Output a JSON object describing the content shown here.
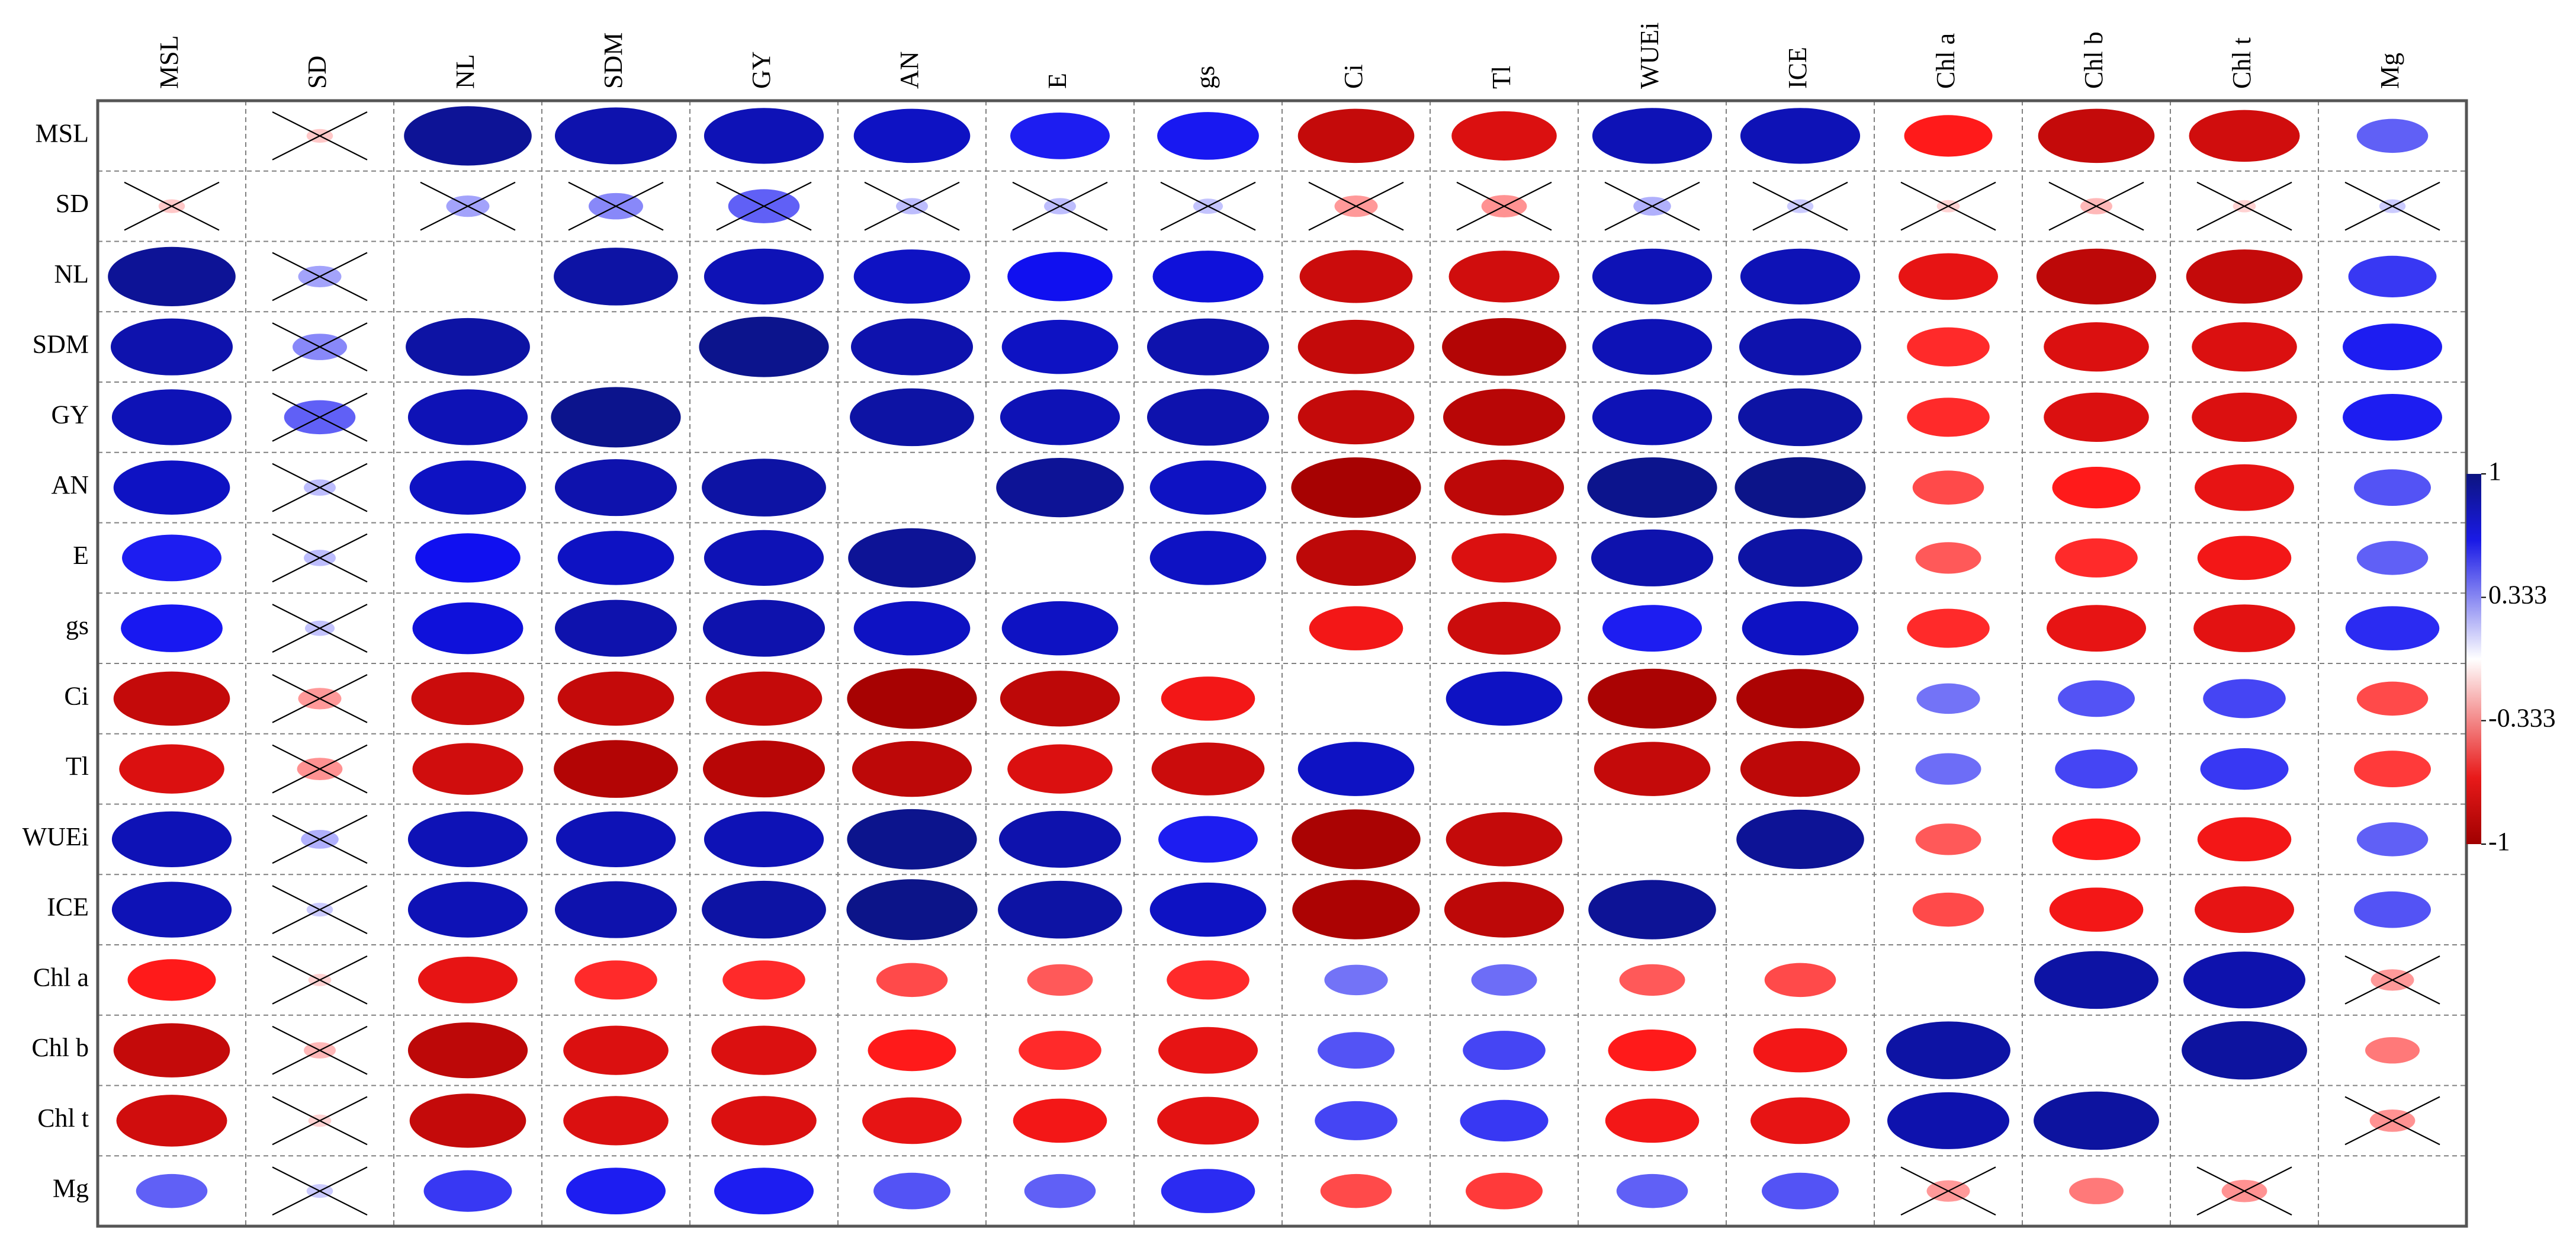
{
  "chart_data": {
    "type": "heatmap",
    "subtype": "ellipse-correlation-matrix",
    "variables": [
      "MSL",
      "SD",
      "NL",
      "SDM",
      "GY",
      "AN",
      "E",
      "gs",
      "Ci",
      "Tl",
      "WUEi",
      "ICE",
      "Chl a",
      "Chl b",
      "Chl t",
      "Mg"
    ],
    "matrix": [
      [
        null,
        -0.05,
        0.95,
        0.9,
        0.88,
        0.85,
        0.7,
        0.72,
        -0.85,
        -0.75,
        0.88,
        0.88,
        -0.6,
        -0.85,
        -0.8,
        0.45
      ],
      [
        -0.05,
        null,
        0.2,
        0.3,
        0.45,
        0.1,
        0.1,
        0.08,
        -0.2,
        -0.22,
        0.15,
        0.05,
        -0.02,
        -0.1,
        -0.02,
        0.05
      ],
      [
        0.95,
        0.2,
        null,
        0.92,
        0.88,
        0.85,
        0.75,
        0.8,
        -0.82,
        -0.8,
        0.88,
        0.88,
        -0.7,
        -0.88,
        -0.85,
        0.6
      ],
      [
        0.9,
        0.3,
        0.92,
        null,
        0.97,
        0.9,
        0.85,
        0.9,
        -0.85,
        -0.92,
        0.88,
        0.9,
        -0.55,
        -0.75,
        -0.75,
        0.7
      ],
      [
        0.88,
        0.45,
        0.88,
        0.97,
        null,
        0.92,
        0.88,
        0.9,
        -0.85,
        -0.9,
        0.88,
        0.92,
        -0.55,
        -0.75,
        -0.75,
        0.7
      ],
      [
        0.85,
        0.1,
        0.85,
        0.9,
        0.92,
        null,
        0.95,
        0.85,
        -0.97,
        -0.88,
        0.97,
        0.98,
        -0.45,
        -0.6,
        -0.7,
        0.5
      ],
      [
        0.7,
        0.1,
        0.75,
        0.85,
        0.88,
        0.95,
        null,
        0.85,
        -0.88,
        -0.75,
        0.9,
        0.92,
        -0.4,
        -0.55,
        -0.65,
        0.45
      ],
      [
        0.72,
        0.08,
        0.8,
        0.9,
        0.9,
        0.85,
        0.85,
        null,
        -0.65,
        -0.82,
        0.7,
        0.85,
        -0.55,
        -0.7,
        -0.72,
        0.65
      ],
      [
        -0.85,
        -0.2,
        -0.82,
        -0.85,
        -0.85,
        -0.97,
        -0.88,
        -0.65,
        null,
        0.85,
        -0.96,
        -0.95,
        0.38,
        0.5,
        0.55,
        -0.45
      ],
      [
        -0.75,
        -0.22,
        -0.8,
        -0.92,
        -0.9,
        -0.88,
        -0.75,
        -0.82,
        0.85,
        null,
        -0.85,
        -0.88,
        0.4,
        0.55,
        0.6,
        -0.5
      ],
      [
        0.88,
        0.15,
        0.88,
        0.88,
        0.88,
        0.97,
        0.9,
        0.7,
        -0.96,
        -0.85,
        null,
        0.95,
        -0.4,
        -0.6,
        -0.65,
        0.45
      ],
      [
        0.88,
        0.05,
        0.88,
        0.9,
        0.92,
        0.98,
        0.92,
        0.85,
        -0.95,
        -0.88,
        0.95,
        null,
        -0.45,
        -0.65,
        -0.7,
        0.5
      ],
      [
        -0.6,
        -0.02,
        -0.7,
        -0.55,
        -0.55,
        -0.45,
        -0.4,
        -0.55,
        0.38,
        0.4,
        -0.4,
        -0.45,
        null,
        0.92,
        0.9,
        -0.2
      ],
      [
        -0.85,
        -0.1,
        -0.88,
        -0.75,
        -0.75,
        -0.6,
        -0.55,
        -0.7,
        0.5,
        0.55,
        -0.6,
        -0.65,
        0.92,
        null,
        0.93,
        -0.3
      ],
      [
        -0.8,
        -0.02,
        -0.85,
        -0.75,
        -0.75,
        -0.7,
        -0.65,
        -0.72,
        0.55,
        0.6,
        -0.65,
        -0.7,
        0.9,
        0.93,
        null,
        -0.22
      ],
      [
        0.45,
        0.05,
        0.6,
        0.7,
        0.7,
        0.5,
        0.45,
        0.65,
        -0.45,
        -0.5,
        0.45,
        0.5,
        -0.2,
        -0.3,
        -0.22,
        null
      ]
    ],
    "crossed_cells": [
      [
        0,
        1
      ],
      [
        1,
        0
      ],
      [
        1,
        2
      ],
      [
        1,
        3
      ],
      [
        1,
        4
      ],
      [
        1,
        5
      ],
      [
        1,
        6
      ],
      [
        1,
        7
      ],
      [
        1,
        8
      ],
      [
        1,
        9
      ],
      [
        1,
        10
      ],
      [
        1,
        11
      ],
      [
        1,
        12
      ],
      [
        1,
        13
      ],
      [
        1,
        14
      ],
      [
        1,
        15
      ],
      [
        2,
        1
      ],
      [
        3,
        1
      ],
      [
        4,
        1
      ],
      [
        5,
        1
      ],
      [
        6,
        1
      ],
      [
        7,
        1
      ],
      [
        8,
        1
      ],
      [
        9,
        1
      ],
      [
        10,
        1
      ],
      [
        11,
        1
      ],
      [
        12,
        1
      ],
      [
        13,
        1
      ],
      [
        14,
        1
      ],
      [
        15,
        1
      ],
      [
        12,
        15
      ],
      [
        14,
        15
      ],
      [
        15,
        12
      ],
      [
        15,
        14
      ]
    ],
    "colorbar": {
      "min": -1,
      "max": 1,
      "tick_labels": [
        "1",
        "0.333",
        "-0.333",
        "-1"
      ],
      "tick_values": [
        1,
        0.333,
        -0.333,
        -1
      ]
    },
    "colors": {
      "positive": "#0c1480",
      "negative": "#a00000",
      "neutral": "#ffffff",
      "grid": "#808080",
      "border": "#555555"
    }
  }
}
